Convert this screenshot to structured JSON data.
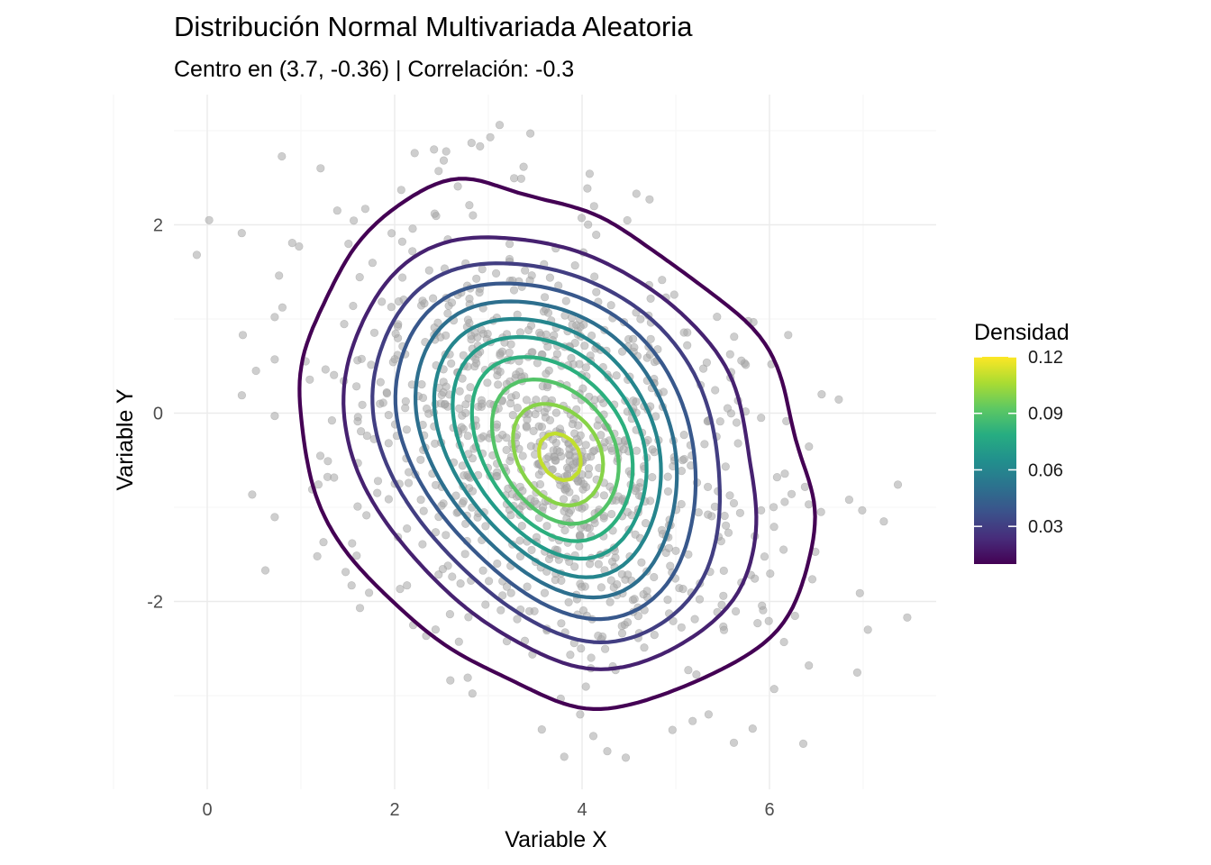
{
  "chart_data": {
    "type": "scatter",
    "title": "Distribución Normal Multivariada Aleatoria",
    "subtitle": "Centro en (3.7, -0.36) | Correlación: -0.3",
    "xlabel": "Variable X",
    "ylabel": "Variable Y",
    "xlim": [
      -0.3,
      7.75
    ],
    "ylim": [
      -3.95,
      3.3
    ],
    "x_ticks": [
      0,
      2,
      4,
      6
    ],
    "x_tick_labels": [
      "0",
      "2",
      "4",
      "6"
    ],
    "y_ticks": [
      -2,
      0,
      2
    ],
    "y_tick_labels": [
      "-2",
      "0",
      "2"
    ],
    "grid": true,
    "legend": {
      "title": "Densidad",
      "placement": "right",
      "ticks": [
        0.03,
        0.06,
        0.09,
        0.12
      ],
      "tick_labels": [
        "0.03",
        "0.06",
        "0.09",
        "0.12"
      ],
      "range": [
        0.01,
        0.12
      ],
      "palette": [
        "#440154",
        "#472d7b",
        "#3b528b",
        "#2c728e",
        "#21908d",
        "#27ad81",
        "#5dc863",
        "#aadc32",
        "#fde725"
      ]
    },
    "points_center": [
      3.7,
      -0.36
    ],
    "points_sd": [
      1.1,
      1.1
    ],
    "correlation": -0.3,
    "points_count": 1000,
    "contour_levels": [
      0.01,
      0.02,
      0.03,
      0.04,
      0.05,
      0.06,
      0.07,
      0.08,
      0.09,
      0.1,
      0.11,
      0.12
    ],
    "outlier_points": [
      [
        0.02,
        2.05
      ],
      [
        0.38,
        0.83
      ],
      [
        0.52,
        0.45
      ],
      [
        0.62,
        -1.67
      ],
      [
        0.72,
        1.02
      ],
      [
        0.72,
        0.57
      ],
      [
        0.72,
        -0.03
      ],
      [
        0.98,
        1.77
      ],
      [
        1.05,
        0.55
      ],
      [
        1.21,
        2.6
      ],
      [
        1.24,
        -1.37
      ],
      [
        1.12,
        -0.81
      ],
      [
        1.54,
        -1.83
      ],
      [
        1.63,
        -2.07
      ],
      [
        3.12,
        3.06
      ],
      [
        2.82,
        2.87
      ],
      [
        3.02,
        2.93
      ],
      [
        2.42,
        2.8
      ],
      [
        2.55,
        2.78
      ],
      [
        3.35,
        2.49
      ],
      [
        4.58,
        2.33
      ],
      [
        4.72,
        2.27
      ],
      [
        3.81,
        -3.65
      ],
      [
        4.12,
        -3.43
      ],
      [
        5.62,
        -3.5
      ],
      [
        5.82,
        -3.35
      ],
      [
        5.18,
        -3.27
      ],
      [
        3.57,
        -3.36
      ],
      [
        3.98,
        -3.2
      ],
      [
        6.05,
        -2.93
      ],
      [
        6.42,
        -2.68
      ],
      [
        6.55,
        -1.05
      ],
      [
        6.85,
        -0.92
      ],
      [
        7.05,
        -2.3
      ],
      [
        7.22,
        -1.15
      ],
      [
        7.37,
        -0.76
      ],
      [
        7.47,
        -2.17
      ],
      [
        6.2,
        0.83
      ],
      [
        6.02,
        0.52
      ],
      [
        6.15,
        -1.45
      ],
      [
        5.35,
        -3.2
      ],
      [
        2.78,
        -2.81
      ]
    ]
  }
}
